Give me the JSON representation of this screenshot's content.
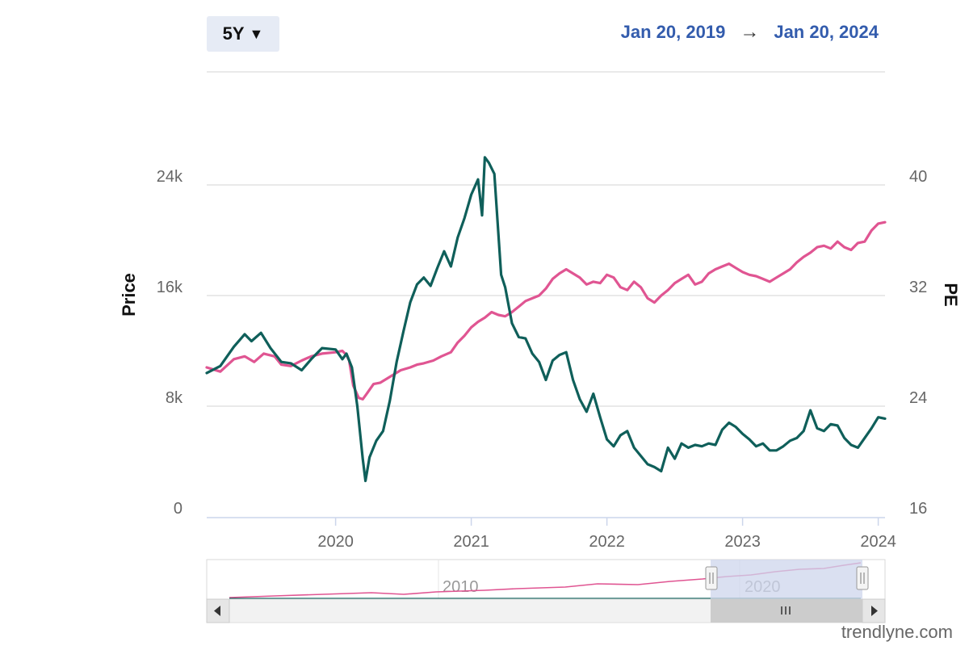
{
  "toolbar": {
    "range_label": "5Y",
    "range_icon": "caret-down-icon",
    "start_date": "Jan 20, 2019",
    "arrow": "→",
    "end_date": "Jan 20, 2024"
  },
  "watermark": "trendlyne.com",
  "colors": {
    "price_line": "#0f5f5a",
    "pe_line": "#e05592",
    "grid": "#e2e2e2",
    "date_text": "#335cad",
    "navigator_mask": "#cdd6ec",
    "scrollbar": "#d0d0d0"
  },
  "navigator": {
    "labels": [
      "2010",
      "2020"
    ]
  },
  "chart_data": {
    "type": "line",
    "title": "",
    "ylabel": "Price",
    "y2label": "PE",
    "xlim": [
      2019.05,
      2024.05
    ],
    "ylim": [
      0,
      24000
    ],
    "y2lim": [
      16,
      40
    ],
    "yticks": [
      {
        "value": 0,
        "label": "0"
      },
      {
        "value": 8000,
        "label": "8k"
      },
      {
        "value": 16000,
        "label": "16k"
      },
      {
        "value": 24000,
        "label": "24k"
      }
    ],
    "y2ticks": [
      {
        "value": 16,
        "label": "16"
      },
      {
        "value": 24,
        "label": "24"
      },
      {
        "value": 32,
        "label": "32"
      },
      {
        "value": 40,
        "label": "40"
      }
    ],
    "xticks": [
      {
        "value": 2020,
        "label": "2020"
      },
      {
        "value": 2021,
        "label": "2021"
      },
      {
        "value": 2022,
        "label": "2022"
      },
      {
        "value": 2023,
        "label": "2023"
      },
      {
        "value": 2024,
        "label": "2024"
      }
    ],
    "grid": true,
    "series": [
      {
        "key": "price",
        "axis": "left",
        "x": [
          2019.05,
          2019.15,
          2019.25,
          2019.33,
          2019.38,
          2019.45,
          2019.52,
          2019.6,
          2019.67,
          2019.75,
          2019.82,
          2019.9,
          2020.0,
          2020.05,
          2020.08,
          2020.12,
          2020.16,
          2020.2,
          2020.22,
          2020.25,
          2020.3,
          2020.35,
          2020.4,
          2020.45,
          2020.5,
          2020.55,
          2020.6,
          2020.65,
          2020.7,
          2020.75,
          2020.8,
          2020.85,
          2020.9,
          2020.95,
          2021.0,
          2021.05,
          2021.08,
          2021.1,
          2021.13,
          2021.17,
          2021.22,
          2021.25,
          2021.3,
          2021.35,
          2021.4,
          2021.45,
          2021.5,
          2021.55,
          2021.6,
          2021.65,
          2021.7,
          2021.75,
          2021.8,
          2021.85,
          2021.9,
          2021.95,
          2022.0,
          2022.05,
          2022.1,
          2022.15,
          2022.2,
          2022.25,
          2022.3,
          2022.35,
          2022.4,
          2022.45,
          2022.5,
          2022.55,
          2022.6,
          2022.65,
          2022.7,
          2022.75,
          2022.8,
          2022.85,
          2022.9,
          2022.95,
          2023.0,
          2023.05,
          2023.1,
          2023.15,
          2023.2,
          2023.25,
          2023.3,
          2023.35,
          2023.4,
          2023.45,
          2023.5,
          2023.55,
          2023.6,
          2023.65,
          2023.7,
          2023.75,
          2023.8,
          2023.85,
          2023.9,
          2023.95,
          2024.0,
          2024.05
        ],
        "y": [
          10400,
          10900,
          12300,
          13200,
          12700,
          13300,
          12200,
          11200,
          11100,
          10600,
          11400,
          12200,
          12100,
          11400,
          11800,
          10800,
          8000,
          4200,
          2600,
          4300,
          5500,
          6200,
          8400,
          11200,
          13400,
          15500,
          16800,
          17300,
          16700,
          18000,
          19200,
          18100,
          20200,
          21600,
          23300,
          24400,
          21800,
          26000,
          25600,
          24800,
          17500,
          16600,
          14000,
          13000,
          12900,
          11800,
          11200,
          9900,
          11300,
          11700,
          11900,
          9900,
          8500,
          7600,
          8900,
          7200,
          5600,
          5100,
          5900,
          6200,
          5000,
          4400,
          3800,
          3600,
          3300,
          5000,
          4200,
          5300,
          5000,
          5200,
          5100,
          5300,
          5200,
          6300,
          6800,
          6500,
          6000,
          5600,
          5100,
          5300,
          4800,
          4800,
          5100,
          5500,
          5700,
          6200,
          7700,
          6400,
          6200,
          6700,
          6600,
          5700,
          5200,
          5000,
          5700,
          6400,
          7200,
          7100
        ],
        "name": ""
      },
      {
        "key": "pe",
        "axis": "right",
        "x": [
          2019.05,
          2019.15,
          2019.25,
          2019.33,
          2019.4,
          2019.47,
          2019.55,
          2019.6,
          2019.67,
          2019.75,
          2019.82,
          2019.9,
          2020.0,
          2020.05,
          2020.08,
          2020.1,
          2020.13,
          2020.17,
          2020.2,
          2020.23,
          2020.28,
          2020.33,
          2020.38,
          2020.43,
          2020.48,
          2020.55,
          2020.6,
          2020.65,
          2020.72,
          2020.78,
          2020.85,
          2020.9,
          2020.95,
          2021.0,
          2021.05,
          2021.1,
          2021.15,
          2021.2,
          2021.25,
          2021.3,
          2021.35,
          2021.4,
          2021.45,
          2021.5,
          2021.55,
          2021.6,
          2021.65,
          2021.7,
          2021.75,
          2021.8,
          2021.85,
          2021.9,
          2021.95,
          2022.0,
          2022.05,
          2022.1,
          2022.15,
          2022.2,
          2022.25,
          2022.3,
          2022.35,
          2022.4,
          2022.45,
          2022.5,
          2022.55,
          2022.6,
          2022.65,
          2022.7,
          2022.75,
          2022.8,
          2022.85,
          2022.9,
          2022.95,
          2023.0,
          2023.05,
          2023.1,
          2023.15,
          2023.2,
          2023.25,
          2023.3,
          2023.35,
          2023.4,
          2023.45,
          2023.5,
          2023.55,
          2023.6,
          2023.65,
          2023.7,
          2023.75,
          2023.8,
          2023.85,
          2023.9,
          2023.95,
          2024.0,
          2024.05
        ],
        "y": [
          26.8,
          26.5,
          27.4,
          27.6,
          27.2,
          27.8,
          27.6,
          27.0,
          26.9,
          27.3,
          27.6,
          27.8,
          27.9,
          28.0,
          27.7,
          27.3,
          25.5,
          24.6,
          24.5,
          24.9,
          25.6,
          25.7,
          26.0,
          26.3,
          26.6,
          26.8,
          27.0,
          27.1,
          27.3,
          27.6,
          27.9,
          28.6,
          29.1,
          29.7,
          30.1,
          30.4,
          30.8,
          30.6,
          30.5,
          30.8,
          31.2,
          31.6,
          31.8,
          32.0,
          32.5,
          33.2,
          33.6,
          33.9,
          33.6,
          33.3,
          32.8,
          33.0,
          32.9,
          33.5,
          33.3,
          32.6,
          32.4,
          33.0,
          32.6,
          31.8,
          31.5,
          32.0,
          32.4,
          32.9,
          33.2,
          33.5,
          32.8,
          33.0,
          33.6,
          33.9,
          34.1,
          34.3,
          34.0,
          33.7,
          33.5,
          33.4,
          33.2,
          33.0,
          33.3,
          33.6,
          33.9,
          34.4,
          34.8,
          35.1,
          35.5,
          35.6,
          35.4,
          35.9,
          35.5,
          35.3,
          35.8,
          35.9,
          36.7,
          37.2,
          37.3
        ],
        "name": ""
      }
    ]
  }
}
